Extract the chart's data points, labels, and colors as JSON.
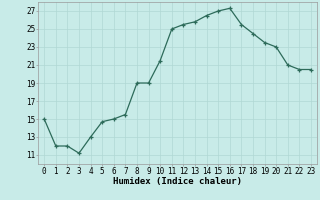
{
  "x": [
    0,
    1,
    2,
    3,
    4,
    5,
    6,
    7,
    8,
    9,
    10,
    11,
    12,
    13,
    14,
    15,
    16,
    17,
    18,
    19,
    20,
    21,
    22,
    23
  ],
  "y": [
    15,
    12,
    12,
    11.2,
    13,
    14.7,
    15,
    15.5,
    19,
    19,
    21.5,
    25,
    25.5,
    25.8,
    26.5,
    27,
    27.3,
    25.5,
    24.5,
    23.5,
    23,
    21,
    20.5,
    20.5
  ],
  "line_color": "#2d6b5a",
  "marker_color": "#2d6b5a",
  "bg_color": "#c8ebe8",
  "grid_color": "#b0d8d4",
  "xlabel": "Humidex (Indice chaleur)",
  "xlim": [
    -0.5,
    23.5
  ],
  "ylim": [
    10,
    28
  ],
  "yticks": [
    11,
    13,
    15,
    17,
    19,
    21,
    23,
    25,
    27
  ],
  "xticks": [
    0,
    1,
    2,
    3,
    4,
    5,
    6,
    7,
    8,
    9,
    10,
    11,
    12,
    13,
    14,
    15,
    16,
    17,
    18,
    19,
    20,
    21,
    22,
    23
  ],
  "xlabel_fontsize": 6.5,
  "tick_fontsize": 5.5
}
